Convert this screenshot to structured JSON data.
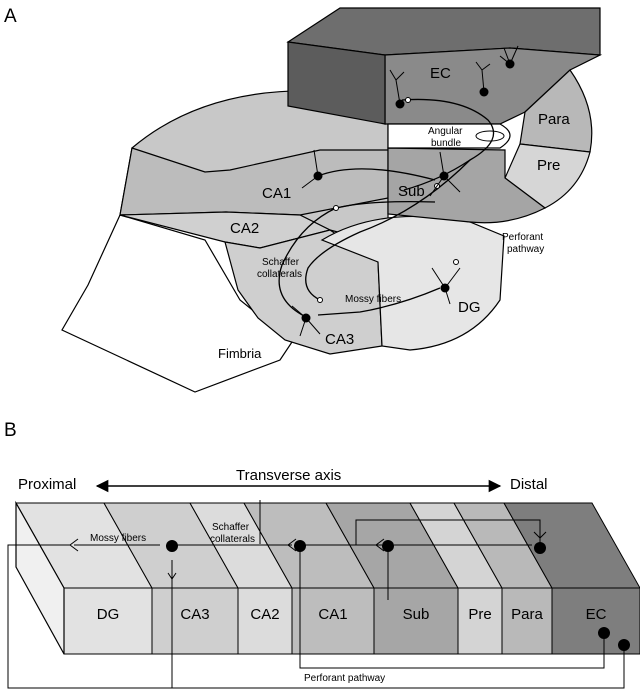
{
  "panel_a": {
    "label": "A",
    "regions": {
      "ec": "EC",
      "para": "Para",
      "pre": "Pre",
      "sub": "Sub",
      "ca1": "CA1",
      "ca2": "CA2",
      "ca3": "CA3",
      "dg": "DG",
      "fimbria": "Fimbria"
    },
    "pathways": {
      "angular_line1": "Angular",
      "angular_line2": "bundle",
      "perforant_line1": "Perforant",
      "perforant_line2": "pathway",
      "schaffer_line1": "Schaffer",
      "schaffer_line2": "collaterals",
      "mossy": "Mossy fibers"
    }
  },
  "panel_b": {
    "label": "B",
    "axis": {
      "left": "Proximal",
      "title": "Transverse axis",
      "right": "Distal"
    },
    "fibers": {
      "mossy": "Mossy fibers",
      "schaffer_line1": "Schaffer",
      "schaffer_line2": "collaterals",
      "perforant": "Perforant pathway"
    },
    "regions": [
      {
        "key": "dg",
        "label": "DG",
        "color": "#e2e2e2"
      },
      {
        "key": "ca3",
        "label": "CA3",
        "color": "#cfcfcf"
      },
      {
        "key": "ca2",
        "label": "CA2",
        "color": "#dcdcdc"
      },
      {
        "key": "ca1",
        "label": "CA1",
        "color": "#bdbdbd"
      },
      {
        "key": "sub",
        "label": "Sub",
        "color": "#a6a6a6"
      },
      {
        "key": "pre",
        "label": "Pre",
        "color": "#d4d4d4"
      },
      {
        "key": "para",
        "label": "Para",
        "color": "#b9b9b9"
      },
      {
        "key": "ec",
        "label": "EC",
        "color": "#7e7e7e"
      }
    ]
  }
}
